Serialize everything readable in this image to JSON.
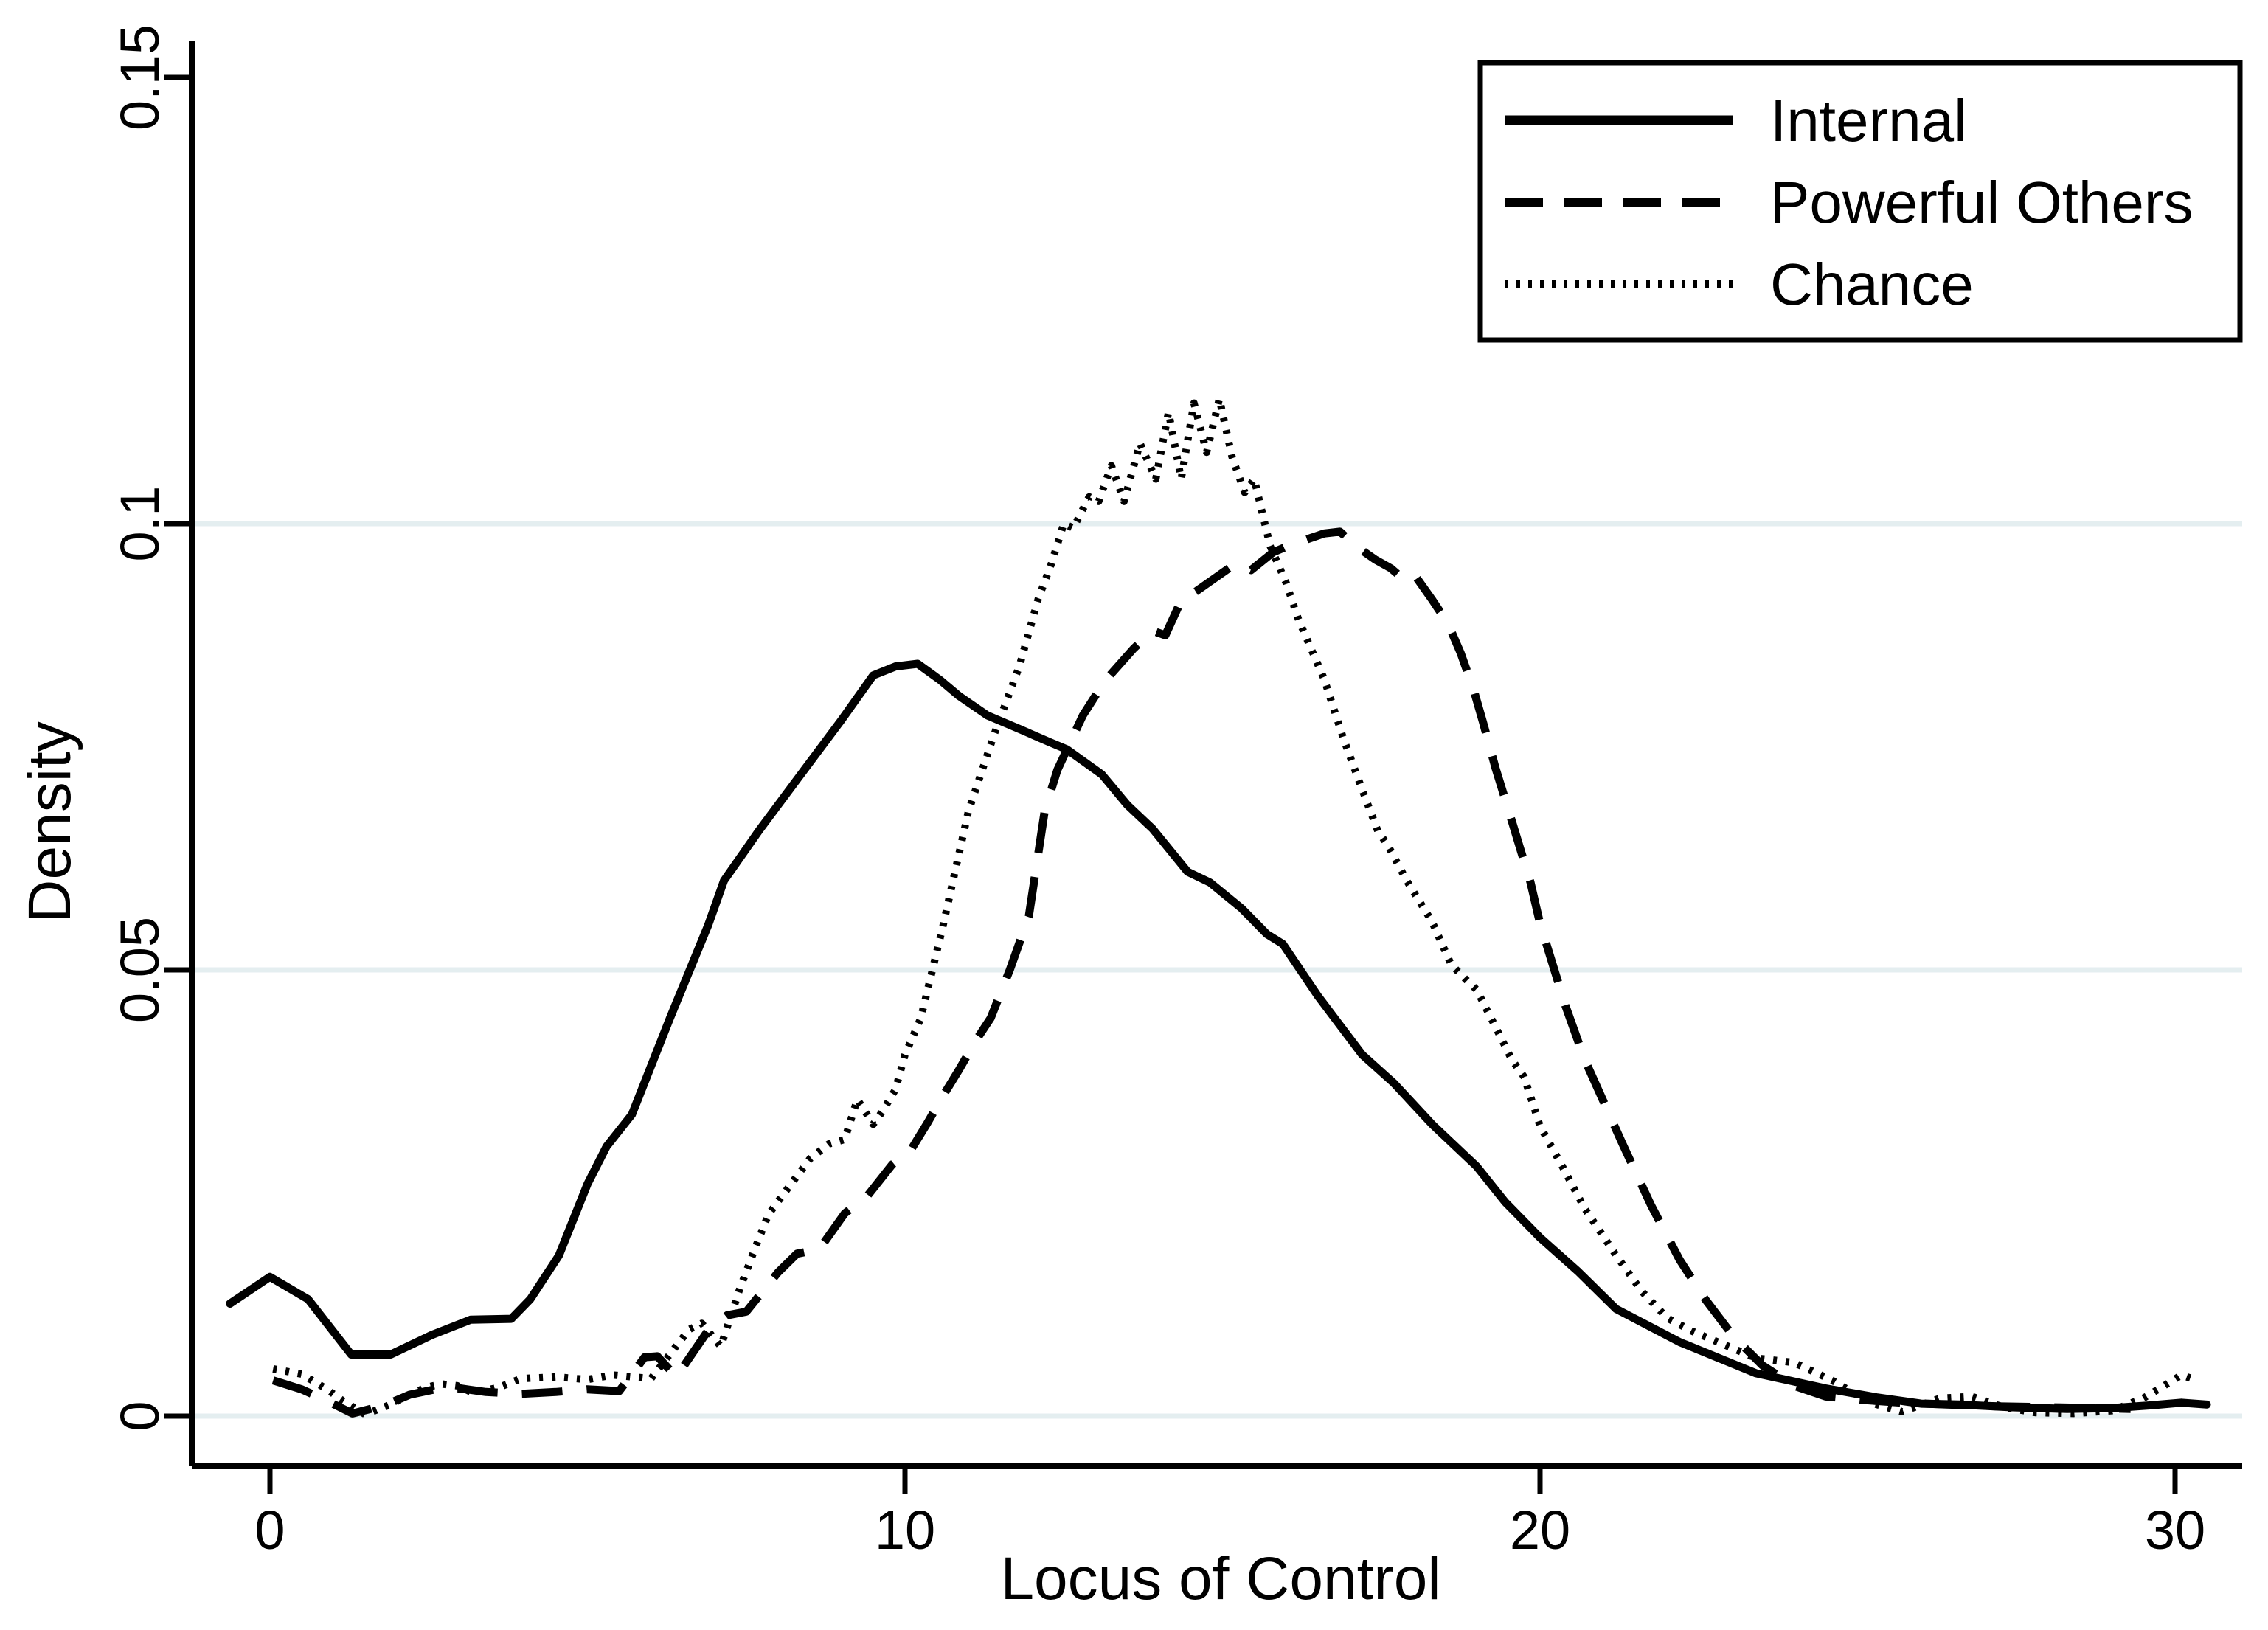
{
  "figure": {
    "background": "#ffffff"
  },
  "chart_data": {
    "type": "line",
    "title": "",
    "xlabel": "Locus of Control",
    "ylabel": "Density",
    "x_ticks": [
      0,
      10,
      20,
      30
    ],
    "x_tick_labels": [
      "0",
      "10",
      "20",
      "30"
    ],
    "y_ticks": [
      0,
      0.05,
      0.1,
      0.15
    ],
    "y_tick_labels": [
      "0",
      "0.05",
      "0.1",
      "0.15"
    ],
    "xlim": [
      -1.25,
      31.05
    ],
    "ylim": [
      -0.0056,
      0.154
    ],
    "grid": {
      "y_values": [
        0,
        0.05,
        0.1
      ],
      "color": "#e4eef0"
    },
    "line_color": "#000000",
    "legend": {
      "position": "top-right",
      "entries": [
        {
          "label": "Internal",
          "style": "solid"
        },
        {
          "label": "Powerful Others",
          "style": "dashed"
        },
        {
          "label": "Chance",
          "style": "dotted"
        }
      ]
    },
    "series": [
      {
        "name": "Internal",
        "style": "solid",
        "points": [
          [
            -0.63,
            0.0126
          ],
          [
            0.0,
            0.0156
          ],
          [
            0.6,
            0.0131
          ],
          [
            1.28,
            0.0069
          ],
          [
            1.9,
            0.0069
          ],
          [
            2.55,
            0.0091
          ],
          [
            3.16,
            0.0108
          ],
          [
            3.8,
            0.0109
          ],
          [
            4.1,
            0.0131
          ],
          [
            4.55,
            0.018
          ],
          [
            5.0,
            0.026
          ],
          [
            5.3,
            0.0302
          ],
          [
            5.7,
            0.0338
          ],
          [
            6.3,
            0.0446
          ],
          [
            6.9,
            0.055
          ],
          [
            7.15,
            0.06
          ],
          [
            7.7,
            0.0656
          ],
          [
            8.35,
            0.0718
          ],
          [
            9.0,
            0.078
          ],
          [
            9.5,
            0.083
          ],
          [
            9.85,
            0.084
          ],
          [
            10.2,
            0.0843
          ],
          [
            10.55,
            0.0825
          ],
          [
            10.85,
            0.0807
          ],
          [
            11.3,
            0.0785
          ],
          [
            11.8,
            0.077
          ],
          [
            12.25,
            0.0756
          ],
          [
            12.55,
            0.0747
          ],
          [
            13.1,
            0.0719
          ],
          [
            13.5,
            0.0685
          ],
          [
            13.9,
            0.0658
          ],
          [
            14.45,
            0.061
          ],
          [
            14.8,
            0.0598
          ],
          [
            15.3,
            0.0569
          ],
          [
            15.7,
            0.054
          ],
          [
            15.95,
            0.0529
          ],
          [
            16.5,
            0.0471
          ],
          [
            17.2,
            0.0405
          ],
          [
            17.7,
            0.0373
          ],
          [
            18.3,
            0.0327
          ],
          [
            19.0,
            0.028
          ],
          [
            19.45,
            0.024
          ],
          [
            20.0,
            0.02
          ],
          [
            20.6,
            0.0162
          ],
          [
            21.2,
            0.012
          ],
          [
            22.2,
            0.0083
          ],
          [
            23.4,
            0.0048
          ],
          [
            24.5,
            0.0031
          ],
          [
            25.3,
            0.0021
          ],
          [
            26.0,
            0.0014
          ],
          [
            26.6,
            0.0013
          ],
          [
            27.4,
            0.001
          ],
          [
            28.3,
            0.0008
          ],
          [
            29.0,
            0.0009
          ],
          [
            29.6,
            0.0012
          ],
          [
            30.1,
            0.0015
          ],
          [
            30.5,
            0.0013
          ]
        ]
      },
      {
        "name": "Powerful Others",
        "style": "dashed",
        "points": [
          [
            0.05,
            0.004
          ],
          [
            0.5,
            0.003
          ],
          [
            0.9,
            0.0017
          ],
          [
            1.3,
            0.0003
          ],
          [
            1.8,
            0.0012
          ],
          [
            2.2,
            0.0024
          ],
          [
            2.6,
            0.003
          ],
          [
            3.0,
            0.0031
          ],
          [
            3.4,
            0.0027
          ],
          [
            3.95,
            0.0025
          ],
          [
            4.5,
            0.0027
          ],
          [
            5.0,
            0.003
          ],
          [
            5.5,
            0.0028
          ],
          [
            5.9,
            0.0066
          ],
          [
            6.1,
            0.0067
          ],
          [
            6.4,
            0.0044
          ],
          [
            6.9,
            0.0096
          ],
          [
            7.2,
            0.0113
          ],
          [
            7.5,
            0.0117
          ],
          [
            8.0,
            0.0161
          ],
          [
            8.3,
            0.0182
          ],
          [
            8.65,
            0.0187
          ],
          [
            9.05,
            0.0227
          ],
          [
            9.4,
            0.0246
          ],
          [
            9.8,
            0.0282
          ],
          [
            10.1,
            0.0299
          ],
          [
            10.35,
            0.0328
          ],
          [
            10.6,
            0.0359
          ],
          [
            10.85,
            0.0388
          ],
          [
            11.1,
            0.0419
          ],
          [
            11.35,
            0.0446
          ],
          [
            11.65,
            0.05
          ],
          [
            11.95,
            0.056
          ],
          [
            12.2,
            0.0678
          ],
          [
            12.4,
            0.0724
          ],
          [
            12.55,
            0.0747
          ],
          [
            12.8,
            0.0785
          ],
          [
            13.15,
            0.0824
          ],
          [
            13.6,
            0.086
          ],
          [
            13.9,
            0.088
          ],
          [
            14.1,
            0.0875
          ],
          [
            14.35,
            0.0914
          ],
          [
            14.6,
            0.0925
          ],
          [
            14.9,
            0.094
          ],
          [
            15.2,
            0.0955
          ],
          [
            15.45,
            0.0948
          ],
          [
            15.8,
            0.0968
          ],
          [
            16.1,
            0.0977
          ],
          [
            16.35,
            0.0983
          ],
          [
            16.6,
            0.0989
          ],
          [
            16.85,
            0.0991
          ],
          [
            17.1,
            0.0975
          ],
          [
            17.4,
            0.096
          ],
          [
            17.65,
            0.095
          ],
          [
            17.9,
            0.0935
          ],
          [
            18.05,
            0.094
          ],
          [
            18.3,
            0.0915
          ],
          [
            18.55,
            0.0888
          ],
          [
            18.75,
            0.0855
          ],
          [
            18.95,
            0.0815
          ],
          [
            19.1,
            0.0778
          ],
          [
            19.3,
            0.0726
          ],
          [
            19.5,
            0.068
          ],
          [
            19.7,
            0.0633
          ],
          [
            19.85,
            0.0598
          ],
          [
            20.0,
            0.0552
          ],
          [
            20.2,
            0.0506
          ],
          [
            20.4,
            0.046
          ],
          [
            20.7,
            0.04
          ],
          [
            21.3,
            0.0305
          ],
          [
            21.75,
            0.0236
          ],
          [
            22.2,
            0.0175
          ],
          [
            22.6,
            0.0131
          ],
          [
            23.05,
            0.0089
          ],
          [
            23.5,
            0.0057
          ],
          [
            24.0,
            0.0034
          ],
          [
            24.5,
            0.0022
          ],
          [
            25.1,
            0.0018
          ],
          [
            25.7,
            0.0015
          ],
          [
            26.4,
            0.0013
          ],
          [
            27.2,
            0.0011
          ],
          [
            28.0,
            0.001
          ],
          [
            28.7,
            0.0009
          ],
          [
            29.3,
            0.0008
          ]
        ]
      },
      {
        "name": "Chance",
        "style": "dotted",
        "points": [
          [
            0.05,
            0.0053
          ],
          [
            0.5,
            0.0047
          ],
          [
            0.9,
            0.003
          ],
          [
            1.15,
            0.0017
          ],
          [
            1.5,
            0.0002
          ],
          [
            1.9,
            0.0013
          ],
          [
            2.2,
            0.0024
          ],
          [
            2.45,
            0.0032
          ],
          [
            2.7,
            0.0036
          ],
          [
            2.95,
            0.0034
          ],
          [
            3.2,
            0.0026
          ],
          [
            3.6,
            0.0032
          ],
          [
            3.95,
            0.0042
          ],
          [
            4.5,
            0.0044
          ],
          [
            5.0,
            0.0041
          ],
          [
            5.4,
            0.0046
          ],
          [
            6.0,
            0.0042
          ],
          [
            6.6,
            0.0097
          ],
          [
            6.8,
            0.0104
          ],
          [
            7.1,
            0.0078
          ],
          [
            7.4,
            0.0143
          ],
          [
            7.65,
            0.019
          ],
          [
            7.85,
            0.0226
          ],
          [
            8.1,
            0.025
          ],
          [
            8.5,
            0.0288
          ],
          [
            8.8,
            0.0305
          ],
          [
            9.05,
            0.031
          ],
          [
            9.25,
            0.0355
          ],
          [
            9.5,
            0.0327
          ],
          [
            9.65,
            0.0342
          ],
          [
            9.85,
            0.0366
          ],
          [
            10.0,
            0.0405
          ],
          [
            10.25,
            0.0446
          ],
          [
            10.6,
            0.055
          ],
          [
            11.0,
            0.0678
          ],
          [
            11.4,
            0.0763
          ],
          [
            11.8,
            0.084
          ],
          [
            12.1,
            0.0916
          ],
          [
            12.3,
            0.0954
          ],
          [
            12.5,
            0.1
          ],
          [
            12.65,
            0.0995
          ],
          [
            12.9,
            0.103
          ],
          [
            13.05,
            0.1025
          ],
          [
            13.25,
            0.1065
          ],
          [
            13.45,
            0.1025
          ],
          [
            13.7,
            0.109
          ],
          [
            13.95,
            0.105
          ],
          [
            14.15,
            0.1125
          ],
          [
            14.35,
            0.105
          ],
          [
            14.55,
            0.1135
          ],
          [
            14.75,
            0.108
          ],
          [
            14.95,
            0.114
          ],
          [
            15.15,
            0.1075
          ],
          [
            15.35,
            0.1035
          ],
          [
            15.5,
            0.105
          ],
          [
            15.75,
            0.0975
          ],
          [
            16.0,
            0.0934
          ],
          [
            16.2,
            0.0892
          ],
          [
            16.4,
            0.0859
          ],
          [
            16.6,
            0.0826
          ],
          [
            16.9,
            0.076
          ],
          [
            17.2,
            0.0702
          ],
          [
            17.45,
            0.0655
          ],
          [
            17.6,
            0.064
          ],
          [
            17.9,
            0.06
          ],
          [
            18.3,
            0.0554
          ],
          [
            18.6,
            0.0506
          ],
          [
            18.85,
            0.0488
          ],
          [
            19.0,
            0.0478
          ],
          [
            19.3,
            0.0436
          ],
          [
            19.55,
            0.04
          ],
          [
            19.75,
            0.038
          ],
          [
            20.0,
            0.0325
          ],
          [
            20.35,
            0.028
          ],
          [
            20.7,
            0.0233
          ],
          [
            21.2,
            0.018
          ],
          [
            21.6,
            0.014
          ],
          [
            22.0,
            0.011
          ],
          [
            22.4,
            0.0095
          ],
          [
            22.9,
            0.008
          ],
          [
            23.4,
            0.0065
          ],
          [
            24.0,
            0.006
          ],
          [
            24.6,
            0.004
          ],
          [
            25.2,
            0.0015
          ],
          [
            25.7,
            0.0005
          ],
          [
            26.3,
            0.002
          ],
          [
            26.8,
            0.0022
          ],
          [
            27.3,
            0.001
          ],
          [
            27.8,
            0.0004
          ],
          [
            28.4,
            0.0003
          ],
          [
            29.0,
            0.0006
          ],
          [
            29.5,
            0.002
          ],
          [
            29.85,
            0.0035
          ],
          [
            30.1,
            0.0046
          ],
          [
            30.35,
            0.004
          ]
        ]
      }
    ]
  }
}
